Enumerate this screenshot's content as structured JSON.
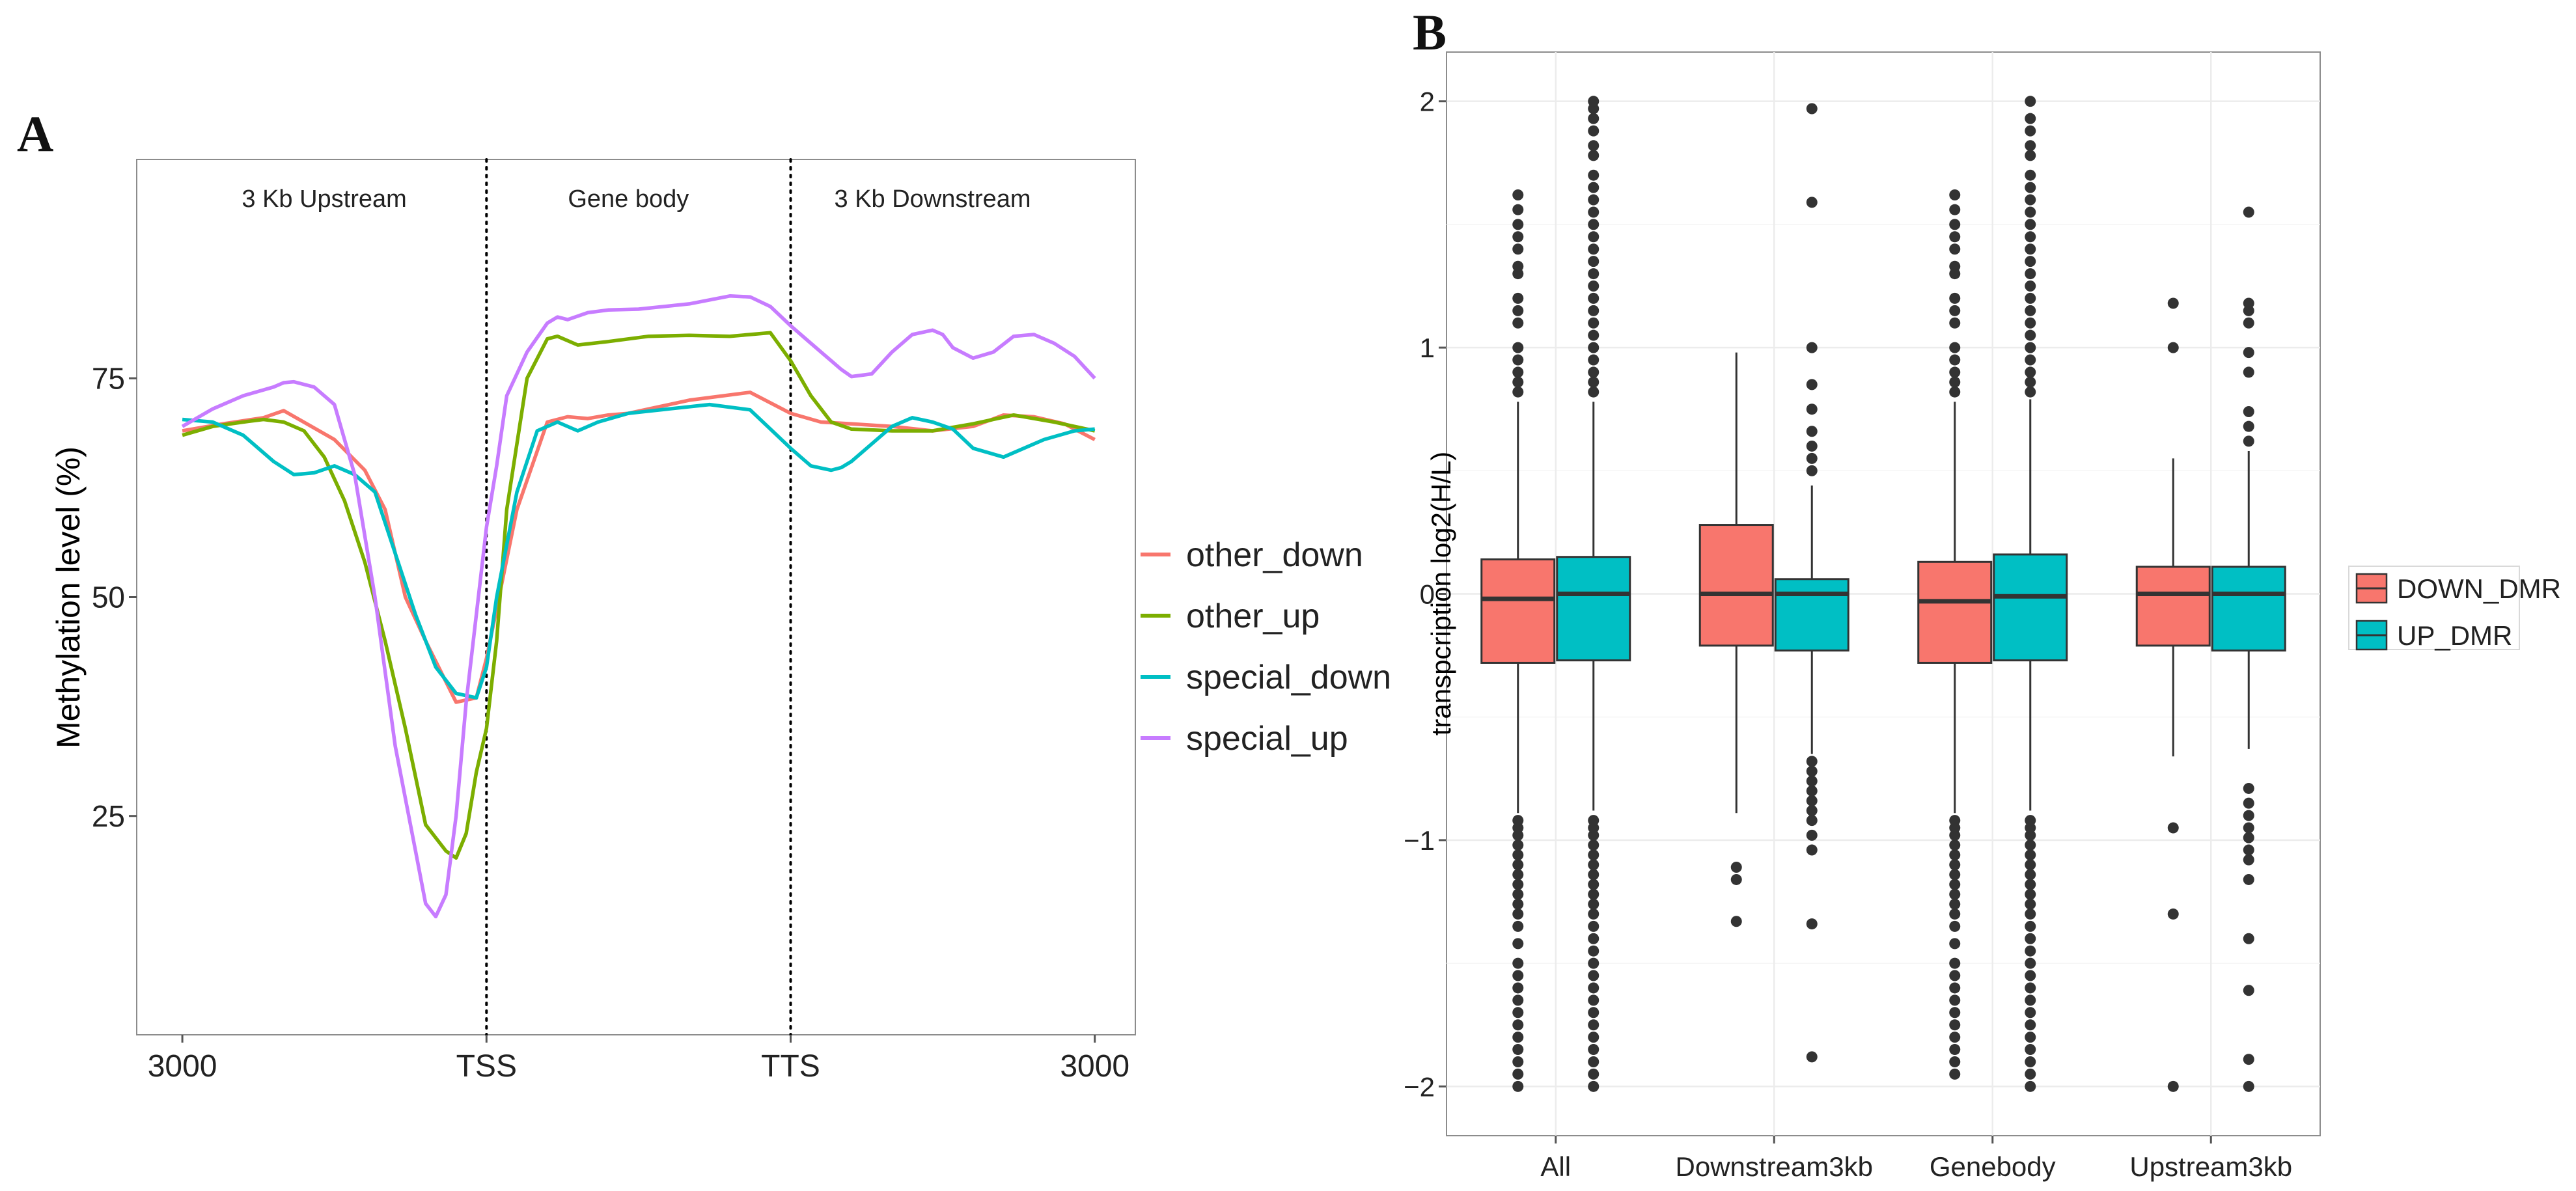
{
  "chart_data": [
    {
      "panel": "A",
      "type": "line",
      "ylabel": "Methylation level (%)",
      "xlabel": "",
      "x_ticks": [
        {
          "x": 0,
          "label": "3000"
        },
        {
          "x": 30,
          "label": "TSS"
        },
        {
          "x": 60,
          "label": "TTS"
        },
        {
          "x": 90,
          "label": "3000"
        }
      ],
      "y_ticks": [
        25,
        50,
        75
      ],
      "xlim": [
        -4.5,
        94
      ],
      "ylim": [
        0,
        100
      ],
      "region_dividers": [
        30,
        60
      ],
      "regions": [
        {
          "x": 14,
          "label": "3 Kb Upstream"
        },
        {
          "x": 44,
          "label": "Gene body"
        },
        {
          "x": 74,
          "label": "3 Kb Downstream"
        }
      ],
      "grid": false,
      "legend_position": "right",
      "series": [
        {
          "name": "other_down",
          "color": "#F8766D",
          "x": [
            0,
            4,
            8,
            10,
            15,
            18,
            20,
            22,
            24,
            27,
            29,
            30,
            33,
            36,
            38,
            40,
            42,
            44,
            50,
            56,
            60,
            63,
            66,
            70,
            74,
            78,
            81,
            84,
            87,
            90
          ],
          "y": [
            69,
            69.8,
            70.5,
            71.3,
            68,
            64.5,
            60,
            50,
            45,
            38,
            38.5,
            43,
            60,
            70,
            70.6,
            70.4,
            70.8,
            71,
            72.5,
            73.4,
            71,
            70,
            69.8,
            69.5,
            69,
            69.5,
            70.8,
            70.6,
            69.8,
            68
          ]
        },
        {
          "name": "other_up",
          "color": "#7CAE00",
          "x": [
            0,
            3,
            6,
            8,
            10,
            12,
            14,
            16,
            18,
            20,
            22,
            24,
            26,
            27,
            28,
            29,
            30,
            31,
            32,
            34,
            36,
            37,
            39,
            42,
            46,
            50,
            54,
            56,
            58,
            60,
            62,
            64,
            66,
            70,
            74,
            78,
            82,
            86,
            90
          ],
          "y": [
            68.5,
            69.5,
            70,
            70.3,
            70,
            69,
            66,
            61,
            54,
            45,
            35,
            24,
            21,
            20.2,
            23,
            30,
            35,
            45,
            60,
            75,
            79.5,
            79.8,
            78.8,
            79.2,
            79.8,
            79.9,
            79.8,
            80,
            80.2,
            77,
            73,
            70,
            69.2,
            69,
            69,
            69.8,
            70.8,
            70,
            69
          ]
        },
        {
          "name": "special_down",
          "color": "#00BFC4",
          "x": [
            0,
            3,
            6,
            9,
            11,
            13,
            15,
            17,
            19,
            21,
            23,
            25,
            27,
            29,
            30,
            31,
            33,
            35,
            37,
            39,
            41,
            44,
            48,
            52,
            56,
            58,
            60,
            62,
            64,
            65,
            66,
            68,
            70,
            72,
            74,
            76,
            78,
            81,
            83,
            85,
            88,
            90
          ],
          "y": [
            70.3,
            70,
            68.5,
            65.5,
            64,
            64.2,
            65,
            64,
            62,
            55,
            48,
            42,
            39,
            38.5,
            42,
            50,
            62,
            69,
            70,
            69,
            70,
            71,
            71.5,
            72,
            71.4,
            69.2,
            67,
            65,
            64.5,
            64.8,
            65.5,
            67.5,
            69.5,
            70.5,
            70,
            69.2,
            67,
            66,
            67,
            68,
            69,
            69.2
          ]
        },
        {
          "name": "special_up",
          "color": "#C77CFF",
          "x": [
            0,
            3,
            6,
            9,
            10,
            11,
            13,
            15,
            17,
            19,
            21,
            23,
            24,
            25,
            26,
            27,
            28,
            29,
            30,
            31,
            32,
            34,
            36,
            37,
            38,
            40,
            42,
            45,
            50,
            54,
            56,
            58,
            60,
            62,
            64,
            65,
            66,
            68,
            70,
            72,
            74,
            75,
            76,
            78,
            80,
            82,
            84,
            86,
            88,
            90
          ],
          "y": [
            69.5,
            71.5,
            73,
            74,
            74.5,
            74.6,
            74,
            72,
            64,
            50,
            33,
            21,
            15,
            13.5,
            16,
            25,
            38,
            48,
            58,
            65,
            73,
            78,
            81.3,
            82,
            81.7,
            82.5,
            82.8,
            82.9,
            83.5,
            84.4,
            84.3,
            83.2,
            81,
            79,
            77,
            76,
            75.2,
            75.5,
            78,
            80,
            80.5,
            80,
            78.5,
            77.3,
            78,
            79.8,
            80,
            79,
            77.5,
            75
          ]
        }
      ]
    },
    {
      "panel": "B",
      "type": "box",
      "ylabel": "transpcription log2(H/L)",
      "xlabel": "",
      "categories": [
        "All",
        "Downstream3kb",
        "Genebody",
        "Upstream3kb"
      ],
      "ylim": [
        -2.2,
        2.2
      ],
      "y_ticks": [
        -2,
        -1,
        0,
        1,
        2
      ],
      "grid": true,
      "legend_position": "right",
      "series": [
        {
          "name": "DOWN_DMR",
          "color": "#F8766D",
          "boxes": [
            {
              "category": "All",
              "q1": -0.28,
              "median": -0.02,
              "q3": 0.14,
              "whisker_low": -0.89,
              "whisker_high": 0.78,
              "outliers": [
                -2.0,
                -1.95,
                -1.9,
                -1.85,
                -1.8,
                -1.75,
                -1.7,
                -1.65,
                -1.6,
                -1.55,
                -1.5,
                -1.42,
                -1.35,
                -1.3,
                -1.26,
                -1.22,
                -1.18,
                -1.14,
                -1.1,
                -1.06,
                -1.02,
                -0.98,
                -0.95,
                -0.92,
                0.82,
                0.86,
                0.9,
                0.95,
                1.0,
                1.1,
                1.15,
                1.2,
                1.3,
                1.33,
                1.4,
                1.45,
                1.5,
                1.56,
                1.62
              ]
            },
            {
              "category": "Downstream3kb",
              "q1": -0.21,
              "median": 0.0,
              "q3": 0.28,
              "whisker_low": -0.89,
              "whisker_high": 0.98,
              "outliers": [
                -1.33,
                -1.16,
                -1.11
              ]
            },
            {
              "category": "Genebody",
              "q1": -0.28,
              "median": -0.03,
              "q3": 0.13,
              "whisker_low": -0.89,
              "whisker_high": 0.78,
              "outliers": [
                -1.95,
                -1.9,
                -1.85,
                -1.8,
                -1.75,
                -1.7,
                -1.65,
                -1.6,
                -1.55,
                -1.5,
                -1.42,
                -1.35,
                -1.3,
                -1.26,
                -1.22,
                -1.18,
                -1.14,
                -1.1,
                -1.06,
                -1.02,
                -0.98,
                -0.95,
                -0.92,
                0.82,
                0.86,
                0.9,
                0.95,
                1.0,
                1.1,
                1.15,
                1.2,
                1.3,
                1.33,
                1.4,
                1.45,
                1.5,
                1.56,
                1.62
              ]
            },
            {
              "category": "Upstream3kb",
              "q1": -0.21,
              "median": 0.0,
              "q3": 0.11,
              "whisker_low": -0.66,
              "whisker_high": 0.55,
              "outliers": [
                -2.0,
                -1.3,
                -0.95,
                1.0,
                1.18
              ]
            }
          ]
        },
        {
          "name": "UP_DMR",
          "color": "#00BFC4",
          "boxes": [
            {
              "category": "All",
              "q1": -0.27,
              "median": 0.0,
              "q3": 0.15,
              "whisker_low": -0.88,
              "whisker_high": 0.78,
              "outliers": [
                -2.0,
                -1.95,
                -1.9,
                -1.85,
                -1.8,
                -1.75,
                -1.7,
                -1.65,
                -1.6,
                -1.55,
                -1.5,
                -1.45,
                -1.4,
                -1.35,
                -1.3,
                -1.26,
                -1.22,
                -1.18,
                -1.14,
                -1.1,
                -1.06,
                -1.02,
                -0.98,
                -0.95,
                -0.92,
                0.82,
                0.86,
                0.9,
                0.95,
                1.0,
                1.05,
                1.1,
                1.15,
                1.2,
                1.25,
                1.3,
                1.35,
                1.4,
                1.45,
                1.5,
                1.55,
                1.6,
                1.65,
                1.7,
                1.78,
                1.82,
                1.88,
                1.93,
                1.97,
                2.0
              ]
            },
            {
              "category": "Downstream3kb",
              "q1": -0.23,
              "median": 0.0,
              "q3": 0.06,
              "whisker_low": -0.65,
              "whisker_high": 0.44,
              "outliers": [
                -1.88,
                -1.34,
                -1.04,
                -0.98,
                -0.92,
                -0.88,
                -0.84,
                -0.8,
                -0.76,
                -0.72,
                -0.68,
                0.5,
                0.55,
                0.6,
                0.66,
                0.75,
                0.85,
                1.0,
                1.59,
                1.97
              ]
            },
            {
              "category": "Genebody",
              "q1": -0.27,
              "median": -0.01,
              "q3": 0.16,
              "whisker_low": -0.88,
              "whisker_high": 0.79,
              "outliers": [
                -2.0,
                -1.95,
                -1.9,
                -1.85,
                -1.8,
                -1.75,
                -1.7,
                -1.65,
                -1.6,
                -1.55,
                -1.5,
                -1.45,
                -1.4,
                -1.35,
                -1.3,
                -1.26,
                -1.22,
                -1.18,
                -1.14,
                -1.1,
                -1.06,
                -1.02,
                -0.98,
                -0.95,
                -0.92,
                0.82,
                0.86,
                0.9,
                0.95,
                1.0,
                1.05,
                1.1,
                1.15,
                1.2,
                1.25,
                1.3,
                1.35,
                1.4,
                1.45,
                1.5,
                1.55,
                1.6,
                1.65,
                1.7,
                1.78,
                1.82,
                1.88,
                1.93,
                2.0
              ]
            },
            {
              "category": "Upstream3kb",
              "q1": -0.23,
              "median": 0.0,
              "q3": 0.11,
              "whisker_low": -0.63,
              "whisker_high": 0.58,
              "outliers": [
                -2.0,
                -1.89,
                -1.61,
                -1.4,
                -1.16,
                -1.08,
                -1.04,
                -0.99,
                -0.95,
                -0.9,
                -0.85,
                -0.79,
                0.62,
                0.68,
                0.74,
                0.9,
                0.98,
                1.1,
                1.15,
                1.18,
                1.55
              ]
            }
          ]
        }
      ]
    }
  ]
}
